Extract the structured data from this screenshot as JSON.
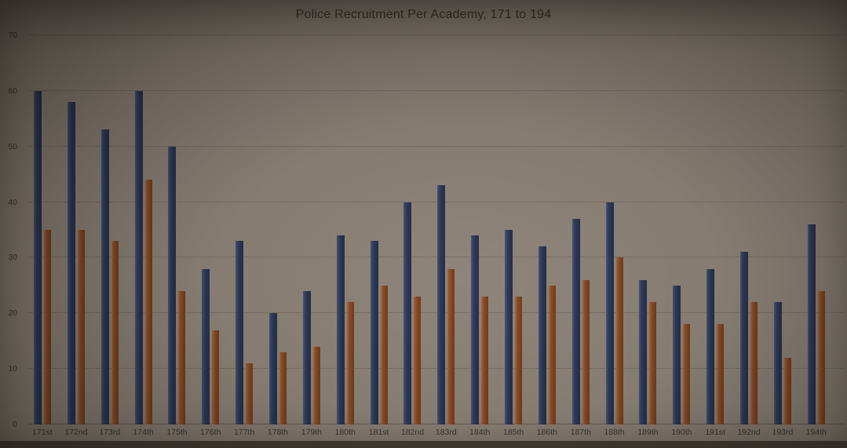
{
  "chart_data": {
    "type": "bar",
    "title": "Police Recruitment Per Academy, 171 to 194",
    "categories": [
      "171st",
      "172nd",
      "173rd",
      "174th",
      "175th",
      "176th",
      "177th",
      "178th",
      "179th",
      "180th",
      "181st",
      "182nd",
      "183rd",
      "184th",
      "185th",
      "186th",
      "187th",
      "188th",
      "189th",
      "190th",
      "191st",
      "192nd",
      "193rd",
      "194th"
    ],
    "series": [
      {
        "name": "series_1",
        "color": "#2e3c5c",
        "values": [
          60,
          58,
          53,
          60,
          50,
          28,
          33,
          20,
          24,
          34,
          33,
          40,
          43,
          34,
          35,
          32,
          37,
          40,
          26,
          25,
          28,
          31,
          22,
          36
        ]
      },
      {
        "name": "series_2",
        "color": "#8f4d24",
        "values": [
          35,
          35,
          33,
          44,
          24,
          17,
          11,
          13,
          14,
          22,
          25,
          23,
          28,
          23,
          23,
          25,
          26,
          30,
          22,
          18,
          18,
          22,
          12,
          24
        ]
      }
    ],
    "xlabel": "",
    "ylabel": "",
    "ylim": [
      0,
      70
    ],
    "yticks": [
      0,
      10,
      20,
      30,
      40,
      50,
      60,
      70
    ],
    "grid": true,
    "legend": "none",
    "colors": {
      "series_1": "#2e3c5c",
      "series_2": "#8f4d24",
      "background": "#8f857a"
    }
  }
}
